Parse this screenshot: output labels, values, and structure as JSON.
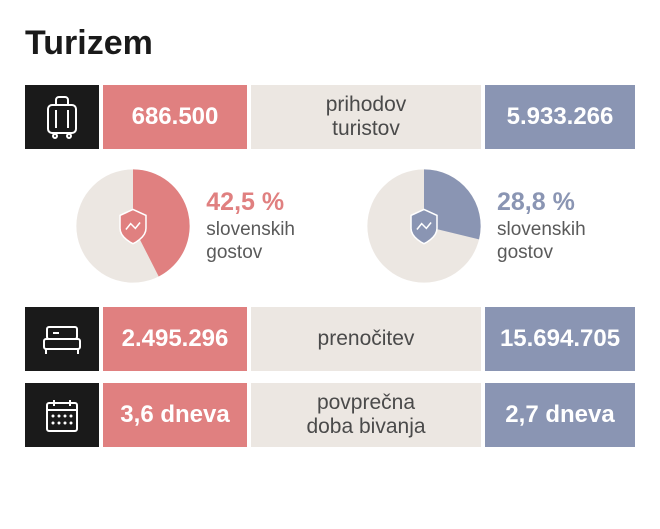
{
  "title": "Turizem",
  "colors": {
    "red": "#e08080",
    "blue": "#8a95b3",
    "icon_bg": "#1a1a1a",
    "label_bg": "#ece7e2",
    "text": "#4a4a4a",
    "pie_bg": "#ece7e2"
  },
  "rows": [
    {
      "icon": "suitcase",
      "red_value": "686.500",
      "label": "prihodov\nturistov",
      "blue_value": "5.933.266"
    },
    {
      "icon": "bed",
      "red_value": "2.495.296",
      "label": "prenočitev",
      "blue_value": "15.694.705"
    },
    {
      "icon": "calendar",
      "red_value": "3,6 dneva",
      "label": "povprečna\ndoba bivanja",
      "blue_value": "2,7 dneva"
    }
  ],
  "pies": [
    {
      "percent": 42.5,
      "percent_label": "42,5 %",
      "sub1": "slovenskih",
      "sub2": "gostov",
      "color": "#e08080",
      "bg": "#ece7e2",
      "icon_fill": "#e08080"
    },
    {
      "percent": 28.8,
      "percent_label": "28,8 %",
      "sub1": "slovenskih",
      "sub2": "gostov",
      "color": "#8a95b3",
      "bg": "#ece7e2",
      "icon_fill": "#8a95b3"
    }
  ]
}
